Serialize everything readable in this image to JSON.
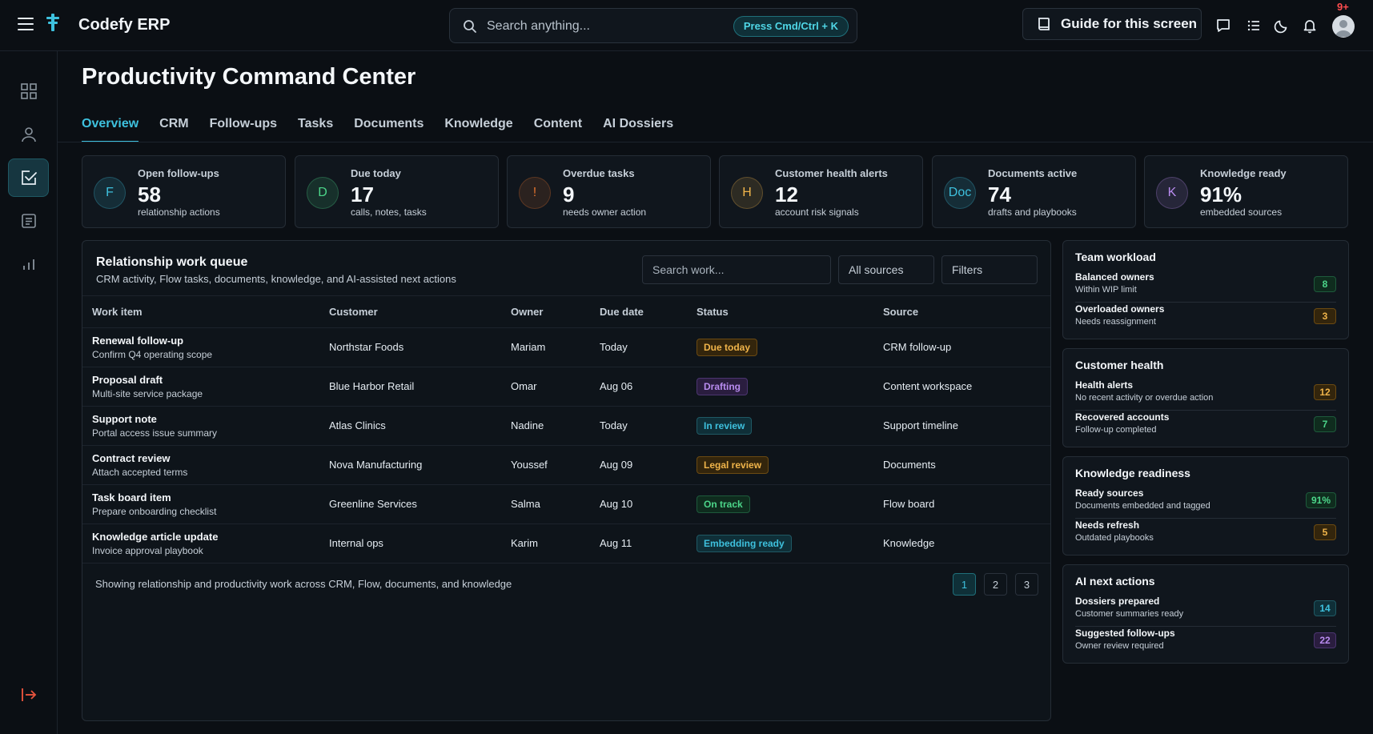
{
  "app": {
    "brand": "Codefy ERP"
  },
  "header": {
    "search_placeholder": "Search anything...",
    "shortcut": "Press Cmd/Ctrl + K",
    "guide_label": "Guide for this screen",
    "notification_count": "9+"
  },
  "page": {
    "title": "Productivity Command Center",
    "tabs": [
      "Overview",
      "CRM",
      "Follow-ups",
      "Tasks",
      "Documents",
      "Knowledge",
      "Content",
      "AI Dossiers"
    ],
    "active_tab": "Overview"
  },
  "kpis": [
    {
      "icon": "F",
      "label": "Open follow-ups",
      "value": "58",
      "sub": "relationship actions",
      "color": "#3ec1de"
    },
    {
      "icon": "D",
      "label": "Due today",
      "value": "17",
      "sub": "calls, notes, tasks",
      "color": "#4cd68a"
    },
    {
      "icon": "!",
      "label": "Overdue tasks",
      "value": "9",
      "sub": "needs owner action",
      "color": "#e0722e"
    },
    {
      "icon": "H",
      "label": "Customer health alerts",
      "value": "12",
      "sub": "account risk signals",
      "color": "#f0b44a"
    },
    {
      "icon": "Doc",
      "label": "Documents active",
      "value": "74",
      "sub": "drafts and playbooks",
      "color": "#3ec1de"
    },
    {
      "icon": "K",
      "label": "Knowledge ready",
      "value": "91%",
      "sub": "embedded sources",
      "color": "#b98cf0"
    }
  ],
  "queue": {
    "title": "Relationship work queue",
    "subtitle": "CRM activity, Flow tasks, documents, knowledge, and AI-assisted next actions",
    "search_placeholder": "Search work...",
    "source_filter": "All sources",
    "filters_label": "Filters",
    "columns": [
      "Work item",
      "Customer",
      "Owner",
      "Due date",
      "Status",
      "Source"
    ],
    "rows": [
      {
        "title": "Renewal follow-up",
        "sub": "Confirm Q4 operating scope",
        "customer": "Northstar Foods",
        "owner": "Mariam",
        "due": "Today",
        "status": "Due today",
        "tone": "amber",
        "source": "CRM follow-up"
      },
      {
        "title": "Proposal draft",
        "sub": "Multi-site service package",
        "customer": "Blue Harbor Retail",
        "owner": "Omar",
        "due": "Aug 06",
        "status": "Drafting",
        "tone": "purple",
        "source": "Content workspace"
      },
      {
        "title": "Support note",
        "sub": "Portal access issue summary",
        "customer": "Atlas Clinics",
        "owner": "Nadine",
        "due": "Today",
        "status": "In review",
        "tone": "cyan",
        "source": "Support timeline"
      },
      {
        "title": "Contract review",
        "sub": "Attach accepted terms",
        "customer": "Nova Manufacturing",
        "owner": "Youssef",
        "due": "Aug 09",
        "status": "Legal review",
        "tone": "amber",
        "source": "Documents"
      },
      {
        "title": "Task board item",
        "sub": "Prepare onboarding checklist",
        "customer": "Greenline Services",
        "owner": "Salma",
        "due": "Aug 10",
        "status": "On track",
        "tone": "green",
        "source": "Flow board"
      },
      {
        "title": "Knowledge article update",
        "sub": "Invoice approval playbook",
        "customer": "Internal ops",
        "owner": "Karim",
        "due": "Aug 11",
        "status": "Embedding ready",
        "tone": "cyan",
        "source": "Knowledge"
      }
    ],
    "footer": "Showing relationship and productivity work across CRM, Flow, documents, and knowledge",
    "pages": [
      "1",
      "2",
      "3"
    ],
    "current_page": "1"
  },
  "side_panels": [
    {
      "title": "Team workload",
      "items": [
        {
          "label": "Balanced owners",
          "sub": "Within WIP limit",
          "value": "8",
          "tone": "green"
        },
        {
          "label": "Overloaded owners",
          "sub": "Needs reassignment",
          "value": "3",
          "tone": "amber"
        }
      ]
    },
    {
      "title": "Customer health",
      "items": [
        {
          "label": "Health alerts",
          "sub": "No recent activity or overdue action",
          "value": "12",
          "tone": "amber"
        },
        {
          "label": "Recovered accounts",
          "sub": "Follow-up completed",
          "value": "7",
          "tone": "green"
        }
      ]
    },
    {
      "title": "Knowledge readiness",
      "items": [
        {
          "label": "Ready sources",
          "sub": "Documents embedded and tagged",
          "value": "91%",
          "tone": "green"
        },
        {
          "label": "Needs refresh",
          "sub": "Outdated playbooks",
          "value": "5",
          "tone": "amber"
        }
      ]
    },
    {
      "title": "AI next actions",
      "items": [
        {
          "label": "Dossiers prepared",
          "sub": "Customer summaries ready",
          "value": "14",
          "tone": "cyan"
        },
        {
          "label": "Suggested follow-ups",
          "sub": "Owner review required",
          "value": "22",
          "tone": "purple"
        }
      ]
    }
  ],
  "sidebar": {
    "icons": [
      "dashboard-icon",
      "user-icon",
      "productivity-icon",
      "document-icon",
      "analytics-icon"
    ],
    "active": "productivity-icon"
  },
  "colors": {
    "accent": "#3ec1de",
    "danger": "#ff4d4f",
    "logout": "#e5533d"
  }
}
